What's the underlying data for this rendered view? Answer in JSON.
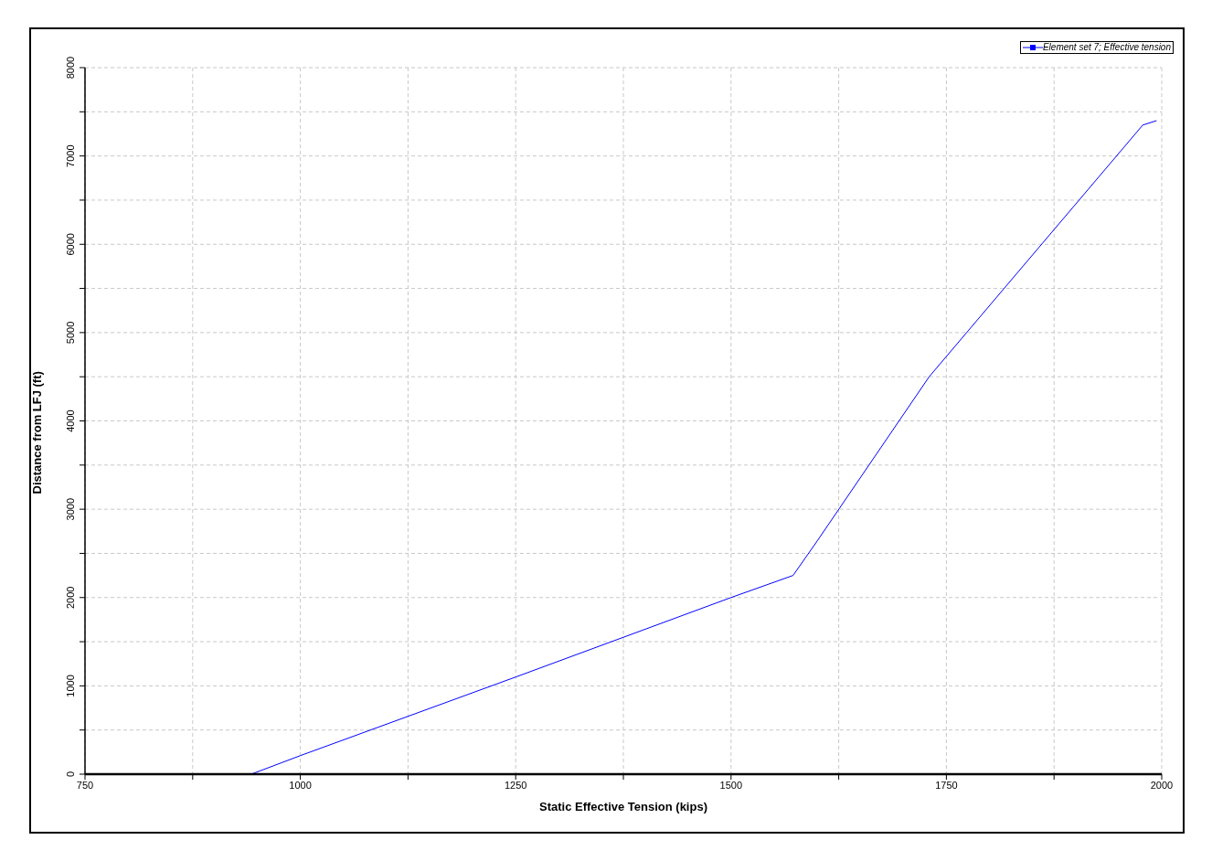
{
  "chart_data": {
    "type": "line",
    "xlabel": "Static Effective Tension (kips)",
    "ylabel": "Distance from LFJ (ft)",
    "xlim": [
      750,
      2000
    ],
    "xticks": [
      750,
      {
        "value": 875,
        "label": null
      },
      1000,
      {
        "value": 1125,
        "label": null
      },
      1250,
      {
        "value": 1375,
        "label": null
      },
      1500,
      {
        "value": 1625,
        "label": null
      },
      1750,
      {
        "value": 1875,
        "label": null
      },
      2000
    ],
    "ylim": [
      0,
      8000
    ],
    "yticks": [
      0,
      {
        "value": 500,
        "label": null
      },
      1000,
      {
        "value": 1500,
        "label": null
      },
      2000,
      {
        "value": 2500,
        "label": null
      },
      3000,
      {
        "value": 3500,
        "label": null
      },
      4000,
      {
        "value": 4500,
        "label": null
      },
      5000,
      {
        "value": 5500,
        "label": null
      },
      6000,
      {
        "value": 6500,
        "label": null
      },
      7000,
      {
        "value": 7500,
        "label": null
      },
      8000
    ],
    "x": [
      943,
      1000,
      1250,
      1500,
      1572,
      1600,
      1730,
      1978,
      1994
    ],
    "series": [
      {
        "name": "Element set  7; Effective tension",
        "color": "#0000ff",
        "values": [
          0,
          210,
          1100,
          2000,
          2250,
          2640,
          4500,
          7350,
          7400
        ]
      }
    ],
    "grid": true,
    "legend": "top right",
    "marker": "none",
    "line_style": "solid"
  }
}
